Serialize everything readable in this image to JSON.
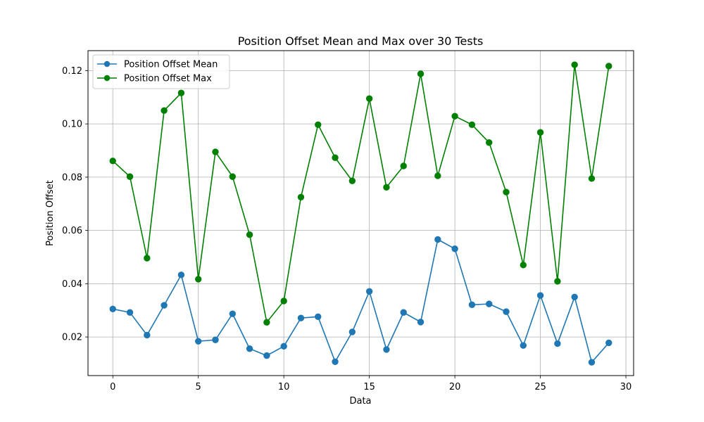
{
  "chart_data": {
    "type": "line",
    "title": "Position Offset Mean and Max over 30 Tests",
    "xlabel": "Data",
    "ylabel": "Position Offset",
    "xlim": [
      -1.45,
      30.45
    ],
    "ylim": [
      0.0055,
      0.1275
    ],
    "x_ticks": [
      0,
      5,
      10,
      15,
      20,
      25,
      30
    ],
    "x_tick_labels": [
      "0",
      "5",
      "10",
      "15",
      "20",
      "25",
      "30"
    ],
    "y_ticks": [
      0.02,
      0.04,
      0.06,
      0.08,
      0.1,
      0.12
    ],
    "y_tick_labels": [
      "0.02",
      "0.04",
      "0.06",
      "0.08",
      "0.10",
      "0.12"
    ],
    "grid": true,
    "legend_position": "top-left",
    "x": [
      0,
      1,
      2,
      3,
      4,
      5,
      6,
      7,
      8,
      9,
      10,
      11,
      12,
      13,
      14,
      15,
      16,
      17,
      18,
      19,
      20,
      21,
      22,
      23,
      24,
      25,
      26,
      27,
      28,
      29
    ],
    "series": [
      {
        "name": "Position Offset Mean",
        "color": "#1f77b4",
        "marker": "circle",
        "values": [
          0.0305,
          0.0292,
          0.0207,
          0.0319,
          0.0433,
          0.0184,
          0.0189,
          0.0287,
          0.0156,
          0.013,
          0.0165,
          0.0271,
          0.0276,
          0.0107,
          0.0219,
          0.0371,
          0.0153,
          0.0292,
          0.0256,
          0.0566,
          0.0531,
          0.0321,
          0.0324,
          0.0295,
          0.0168,
          0.0356,
          0.0175,
          0.035,
          0.0105,
          0.0178
        ]
      },
      {
        "name": "Position Offset Max",
        "color": "#008000",
        "marker": "circle",
        "values": [
          0.0861,
          0.0802,
          0.0496,
          0.105,
          0.1116,
          0.0417,
          0.0895,
          0.0802,
          0.0584,
          0.0255,
          0.0335,
          0.0725,
          0.0997,
          0.0873,
          0.0786,
          0.1095,
          0.0762,
          0.0842,
          0.1188,
          0.0805,
          0.1029,
          0.0997,
          0.093,
          0.0744,
          0.047,
          0.0968,
          0.0409,
          0.1222,
          0.0795,
          0.1217
        ]
      }
    ]
  }
}
